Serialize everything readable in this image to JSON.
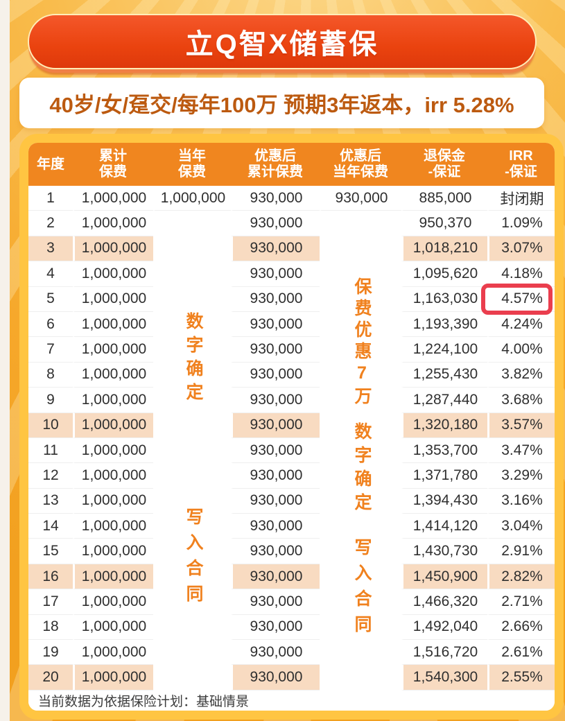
{
  "page": {
    "title": "立Q智X储蓄保",
    "subtitle": "40岁/女/趸交/每年100万 预期3年返本，irr 5.28%",
    "footer": "当前数据为依据保险计划：基础情景"
  },
  "table": {
    "headers": [
      "年度",
      "累计\n保费",
      "当年\n保费",
      "优惠后\n累计保费",
      "优惠后\n当年保费",
      "退保金\n-保证",
      "IRR\n-保证"
    ],
    "annotations": {
      "annual_col": [
        "数字确定",
        "写入合同"
      ],
      "disc_annual_col": [
        "保费优惠7万",
        "数字确定",
        "写入合同"
      ]
    },
    "rows": [
      {
        "year": "1",
        "cum": "1,000,000",
        "annual": "1,000,000",
        "disc_cum": "930,000",
        "disc_annual": "930,000",
        "surrender": "885,000",
        "irr": "封闭期"
      },
      {
        "year": "2",
        "cum": "1,000,000",
        "disc_cum": "930,000",
        "surrender": "950,370",
        "irr": "1.09%"
      },
      {
        "year": "3",
        "cum": "1,000,000",
        "disc_cum": "930,000",
        "surrender": "1,018,210",
        "irr": "3.07%"
      },
      {
        "year": "4",
        "cum": "1,000,000",
        "disc_cum": "930,000",
        "surrender": "1,095,620",
        "irr": "4.18%"
      },
      {
        "year": "5",
        "cum": "1,000,000",
        "disc_cum": "930,000",
        "surrender": "1,163,030",
        "irr": "4.57%"
      },
      {
        "year": "6",
        "cum": "1,000,000",
        "disc_cum": "930,000",
        "surrender": "1,193,390",
        "irr": "4.24%"
      },
      {
        "year": "7",
        "cum": "1,000,000",
        "disc_cum": "930,000",
        "surrender": "1,224,100",
        "irr": "4.00%"
      },
      {
        "year": "8",
        "cum": "1,000,000",
        "disc_cum": "930,000",
        "surrender": "1,255,430",
        "irr": "3.82%"
      },
      {
        "year": "9",
        "cum": "1,000,000",
        "disc_cum": "930,000",
        "surrender": "1,287,440",
        "irr": "3.68%"
      },
      {
        "year": "10",
        "cum": "1,000,000",
        "disc_cum": "930,000",
        "surrender": "1,320,180",
        "irr": "3.57%"
      },
      {
        "year": "11",
        "cum": "1,000,000",
        "disc_cum": "930,000",
        "surrender": "1,353,700",
        "irr": "3.47%"
      },
      {
        "year": "12",
        "cum": "1,000,000",
        "disc_cum": "930,000",
        "surrender": "1,371,780",
        "irr": "3.29%"
      },
      {
        "year": "13",
        "cum": "1,000,000",
        "disc_cum": "930,000",
        "surrender": "1,394,430",
        "irr": "3.16%"
      },
      {
        "year": "14",
        "cum": "1,000,000",
        "disc_cum": "930,000",
        "surrender": "1,414,120",
        "irr": "3.04%"
      },
      {
        "year": "15",
        "cum": "1,000,000",
        "disc_cum": "930,000",
        "surrender": "1,430,730",
        "irr": "2.91%"
      },
      {
        "year": "16",
        "cum": "1,000,000",
        "disc_cum": "930,000",
        "surrender": "1,450,900",
        "irr": "2.82%"
      },
      {
        "year": "17",
        "cum": "1,000,000",
        "disc_cum": "930,000",
        "surrender": "1,466,320",
        "irr": "2.71%"
      },
      {
        "year": "18",
        "cum": "1,000,000",
        "disc_cum": "930,000",
        "surrender": "1,492,040",
        "irr": "2.66%"
      },
      {
        "year": "19",
        "cum": "1,000,000",
        "disc_cum": "930,000",
        "surrender": "1,516,720",
        "irr": "2.61%"
      },
      {
        "year": "20",
        "cum": "1,000,000",
        "disc_cum": "930,000",
        "surrender": "1,540,300",
        "irr": "2.55%"
      }
    ],
    "highlighted_rows": [
      "3",
      "10",
      "16",
      "20"
    ],
    "red_box_row": "5"
  },
  "colors": {
    "banner_red": "#ea430f",
    "card_border": "#ffc542",
    "header_orange": "#f0861f",
    "highlight_peach": "#f8dbc1",
    "annotation_orange": "#f0811e",
    "red_box": "#ea3e4e",
    "subtitle_text": "#bc5a10"
  }
}
